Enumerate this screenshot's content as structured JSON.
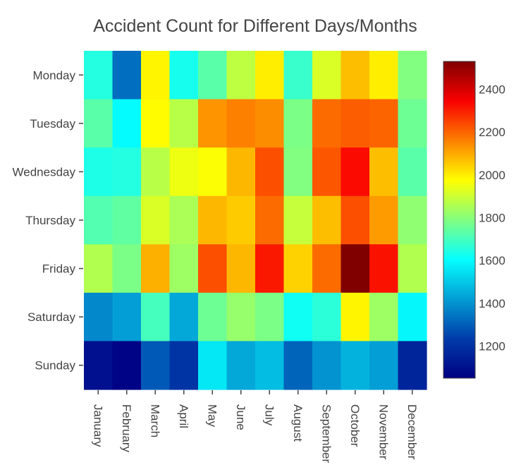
{
  "chart_data": {
    "type": "heatmap",
    "title": "Accident Count for Different Days/Months",
    "xlabel": "",
    "ylabel": "",
    "x": [
      "January",
      "February",
      "March",
      "April",
      "May",
      "June",
      "July",
      "August",
      "September",
      "October",
      "November",
      "December"
    ],
    "y": [
      "Monday",
      "Tuesday",
      "Wednesday",
      "Thursday",
      "Friday",
      "Saturday",
      "Sunday"
    ],
    "z": [
      [
        1650,
        1330,
        1990,
        1630,
        1730,
        1880,
        2000,
        1680,
        1920,
        2070,
        2000,
        1790
      ],
      [
        1730,
        1600,
        1980,
        1870,
        2130,
        2160,
        2140,
        1780,
        2190,
        2210,
        2200,
        1760
      ],
      [
        1640,
        1650,
        1870,
        1950,
        1970,
        2080,
        2230,
        1790,
        2220,
        2330,
        2070,
        1730
      ],
      [
        1720,
        1740,
        1920,
        1850,
        2080,
        2050,
        2190,
        1890,
        2070,
        2230,
        2120,
        1810
      ],
      [
        1860,
        1780,
        2090,
        1830,
        2230,
        2080,
        2310,
        2040,
        2190,
        2530,
        2320,
        1860
      ],
      [
        1380,
        1420,
        1700,
        1440,
        1760,
        1820,
        1780,
        1620,
        1660,
        1990,
        1830,
        1590
      ],
      [
        1100,
        1060,
        1290,
        1210,
        1560,
        1440,
        1480,
        1310,
        1400,
        1460,
        1420,
        1160
      ]
    ],
    "zmin": 1050,
    "zmax": 2530,
    "colorscale": "jet",
    "colorbar": {
      "ticks": [
        1200,
        1400,
        1600,
        1800,
        2000,
        2200,
        2400
      ],
      "tick_labels": [
        "1200",
        "1400",
        "1600",
        "1800",
        "2000",
        "2200",
        "2400"
      ]
    },
    "grid": false,
    "legend": "none"
  }
}
